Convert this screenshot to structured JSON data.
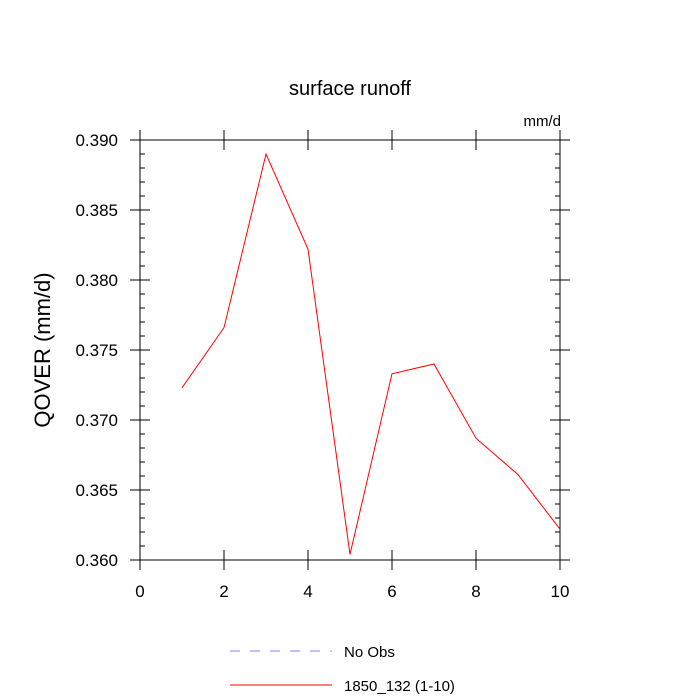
{
  "chart_data": {
    "type": "line",
    "title": "surface runoff",
    "units": "mm/d",
    "ylabel": "QOVER  (mm/d)",
    "xlabel": "",
    "xlim": [
      0,
      10
    ],
    "ylim": [
      0.36,
      0.39
    ],
    "xticks": [
      0,
      2,
      4,
      6,
      8,
      10
    ],
    "xtick_labels": [
      "0",
      "2",
      "4",
      "6",
      "8",
      "10"
    ],
    "yticks": [
      0.36,
      0.365,
      0.37,
      0.375,
      0.38,
      0.385,
      0.39
    ],
    "ytick_labels": [
      "0.360",
      "0.365",
      "0.370",
      "0.375",
      "0.380",
      "0.385",
      "0.390"
    ],
    "grid": false,
    "legend_position": "bottom",
    "series": [
      {
        "name": "No Obs",
        "color": "#8080ff",
        "style": "dashed",
        "x": [],
        "values": []
      },
      {
        "name": "1850_132 (1-10)",
        "color": "#ff0000",
        "style": "solid",
        "x": [
          1,
          2,
          3,
          4,
          5,
          6,
          7,
          8,
          9,
          10
        ],
        "values": [
          0.3723,
          0.3766,
          0.389,
          0.3822,
          0.3604,
          0.3733,
          0.374,
          0.3687,
          0.3661,
          0.3622
        ]
      }
    ]
  }
}
